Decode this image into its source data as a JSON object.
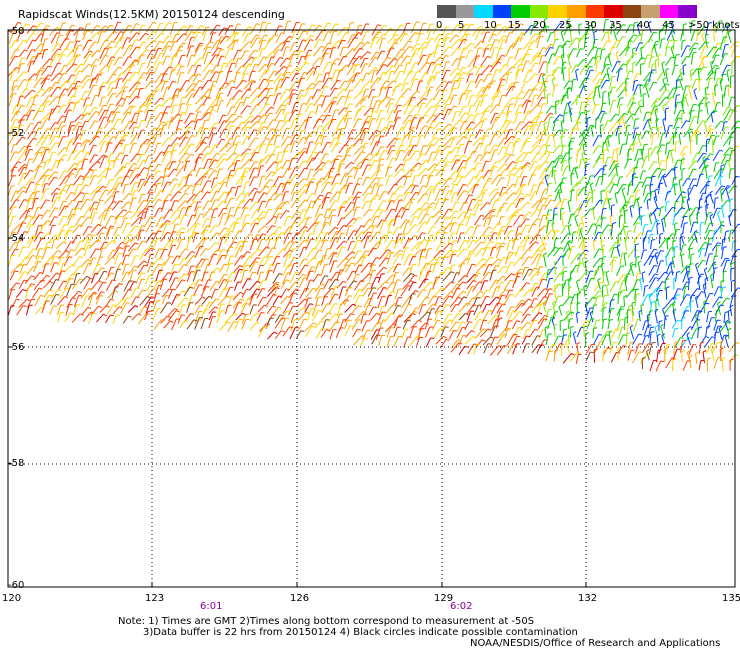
{
  "title": "Rapidscat Winds(12.5KM) 20150124 descending",
  "map": {
    "lat_labels": [
      "-50",
      "-52",
      "-54",
      "-56",
      "-58",
      "-60"
    ],
    "lon_labels": [
      "120",
      "123",
      "126",
      "129",
      "132",
      "135"
    ],
    "lat_range": [
      -60,
      -50
    ],
    "lon_range": [
      120,
      135
    ],
    "grid": "dotted"
  },
  "time_labels": [
    "6:01",
    "6:02"
  ],
  "colorbar": {
    "labels": [
      "0",
      "5",
      "10",
      "15",
      "20",
      "25",
      "30",
      "35",
      "40",
      "45",
      ">50 knots"
    ],
    "colors": [
      "#555555",
      "#999999",
      "#00d8ff",
      "#0040ff",
      "#00cc00",
      "#88e800",
      "#ffd200",
      "#ffa000",
      "#ff3a00",
      "#dd0000",
      "#8b4513",
      "#c8a070",
      "#ff00ff",
      "#8800cc"
    ]
  },
  "notes": {
    "line1": "Note: 1) Times are GMT 2)Times along bottom correspond to measurement at -50S",
    "line2": "3)Data buffer is 22 hrs from 20150124 4) Black circles indicate possible contamination",
    "credit": "NOAA/NESDIS/Office of Research and Applications"
  }
}
